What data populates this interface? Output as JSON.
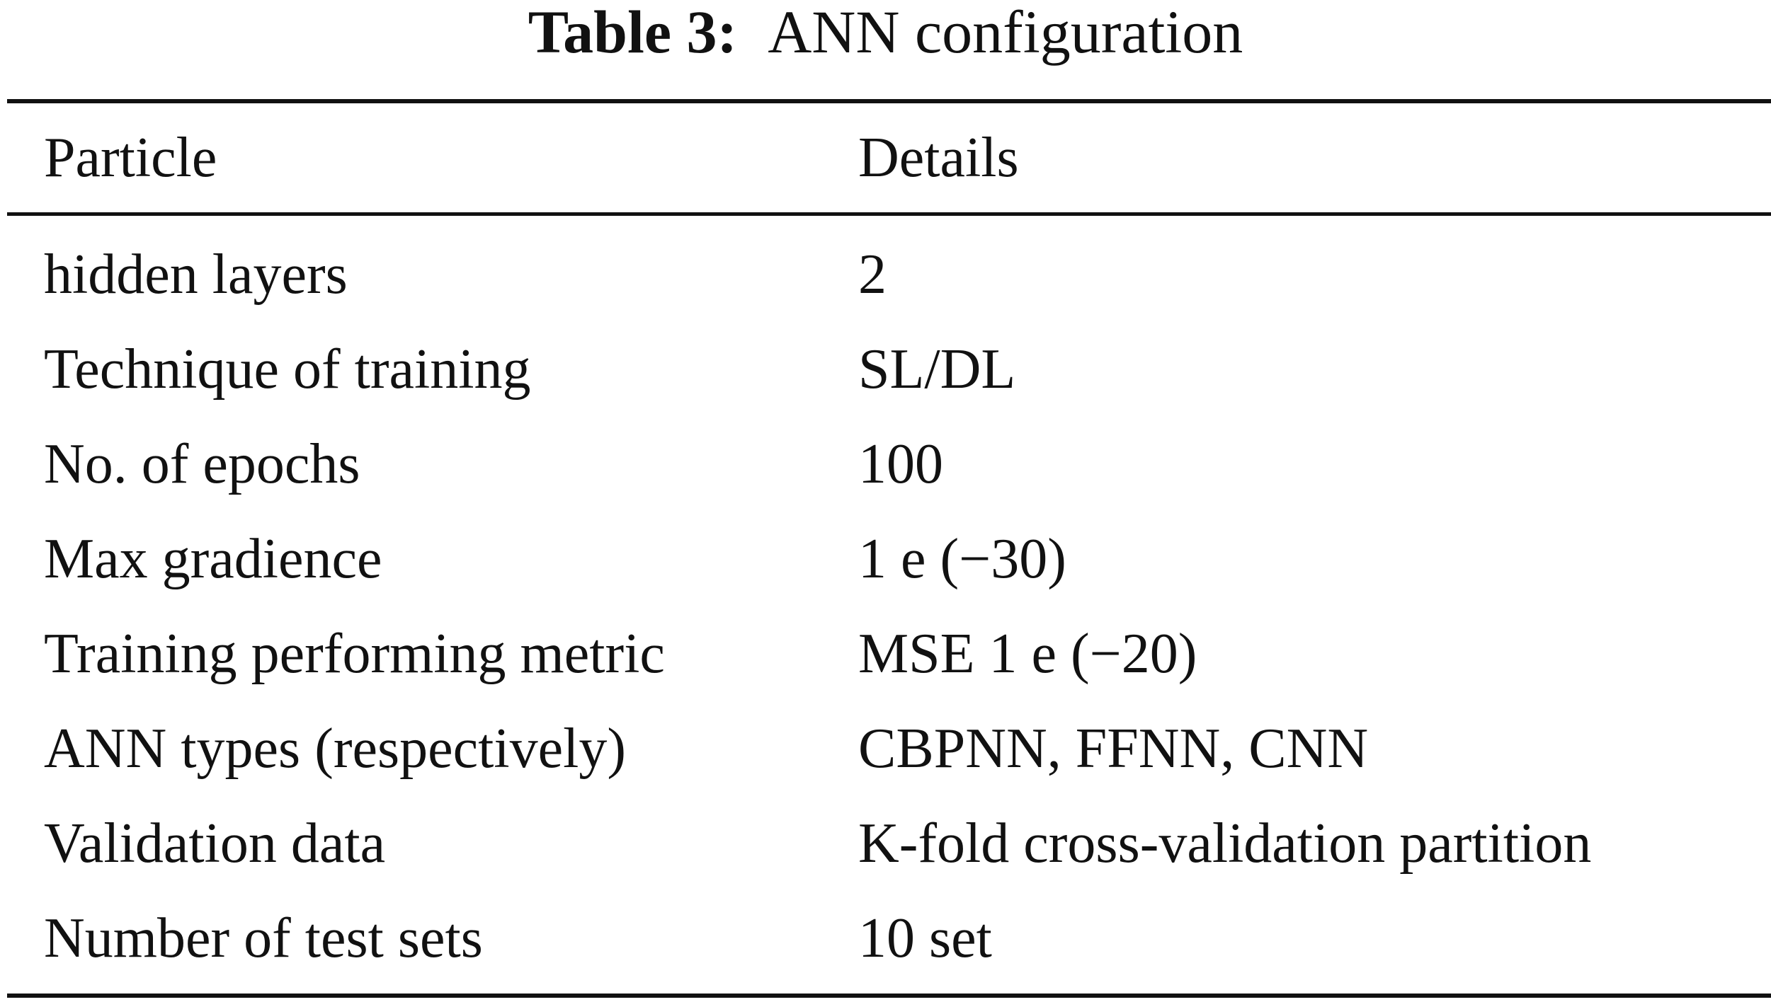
{
  "caption": {
    "label": "Table 3:",
    "title": "ANN configuration"
  },
  "table": {
    "headers": [
      "Particle",
      "Details"
    ],
    "rows": [
      [
        "hidden layers",
        "2"
      ],
      [
        "Technique of training",
        "SL/DL"
      ],
      [
        "No. of epochs",
        "100"
      ],
      [
        "Max gradience",
        "1 e (−30)"
      ],
      [
        "Training performing metric",
        "MSE 1 e (−20)"
      ],
      [
        "ANN types (respectively)",
        "CBPNN, FFNN, CNN"
      ],
      [
        "Validation data",
        "K-fold cross-validation partition"
      ],
      [
        "Number of test sets",
        "10 set"
      ]
    ]
  }
}
